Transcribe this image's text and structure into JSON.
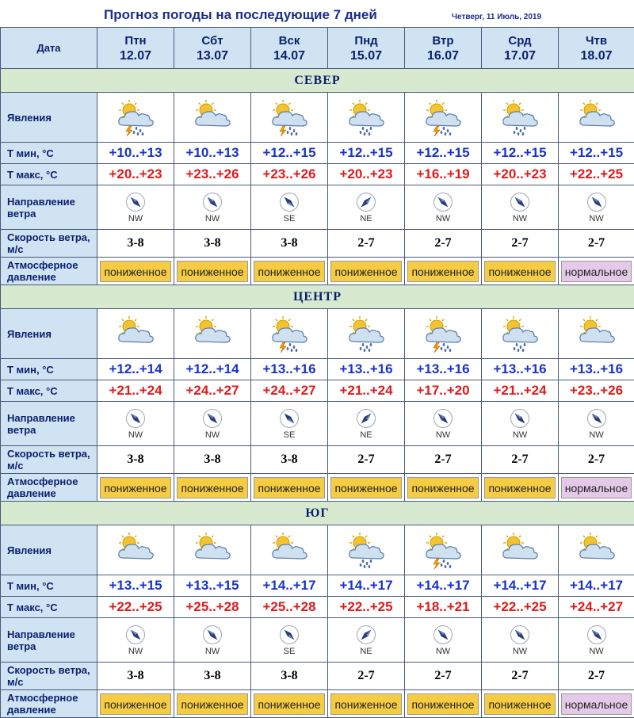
{
  "title": "Прогноз погоды на последующие 7 дней",
  "date": "Четверг, 11 Июль, 2019",
  "header": {
    "date_label": "Дата",
    "days": [
      {
        "name": "Птн",
        "date": "12.07"
      },
      {
        "name": "Сбт",
        "date": "13.07"
      },
      {
        "name": "Вск",
        "date": "14.07"
      },
      {
        "name": "Пнд",
        "date": "15.07"
      },
      {
        "name": "Втр",
        "date": "16.07"
      },
      {
        "name": "Срд",
        "date": "17.07"
      },
      {
        "name": "Чтв",
        "date": "18.07"
      }
    ]
  },
  "row_labels": {
    "phenomena": "Явления",
    "tmin": "Т мин, °С",
    "tmax": "Т макс, °С",
    "wind_dir": "Направление ветра",
    "wind_speed": "Скорость ветра, м/с",
    "pressure": "Атмосферное давление"
  },
  "icon_legend": {
    "pc": "partly-cloudy-icon",
    "ts": "thunderstorm-rain-icon",
    "rn": "cloud-rain-icon"
  },
  "colors": {
    "tmin": "#1833c8",
    "tmax": "#e01a1a",
    "pressure_low": "#f6cc45",
    "pressure_normal": "#e5c9e8",
    "header_bg": "#cfe3f2",
    "region_bg": "#d7e9cf"
  },
  "regions": [
    {
      "name": "СЕВЕР",
      "weather": [
        "ts",
        "pc",
        "ts",
        "rn",
        "ts",
        "rn",
        "pc"
      ],
      "tmin": [
        "+10..+13",
        "+10..+13",
        "+12..+15",
        "+12..+15",
        "+12..+15",
        "+12..+15",
        "+12..+15"
      ],
      "tmax": [
        "+20..+23",
        "+23..+26",
        "+23..+26",
        "+20..+23",
        "+16..+19",
        "+20..+23",
        "+22..+25"
      ],
      "wind_dir": [
        "NW",
        "NW",
        "SE",
        "NE",
        "NW",
        "NW",
        "NW"
      ],
      "wind_speed": [
        "3-8",
        "3-8",
        "3-8",
        "2-7",
        "2-7",
        "2-7",
        "2-7"
      ],
      "pressure": [
        "пониженное",
        "пониженное",
        "пониженное",
        "пониженное",
        "пониженное",
        "пониженное",
        "нормальное"
      ]
    },
    {
      "name": "ЦЕНТР",
      "weather": [
        "pc",
        "pc",
        "ts",
        "rn",
        "ts",
        "rn",
        "pc"
      ],
      "tmin": [
        "+12..+14",
        "+12..+14",
        "+13..+16",
        "+13..+16",
        "+13..+16",
        "+13..+16",
        "+13..+16"
      ],
      "tmax": [
        "+21..+24",
        "+24..+27",
        "+24..+27",
        "+21..+24",
        "+17..+20",
        "+21..+24",
        "+23..+26"
      ],
      "wind_dir": [
        "NW",
        "NW",
        "SE",
        "NE",
        "NW",
        "NW",
        "NW"
      ],
      "wind_speed": [
        "3-8",
        "3-8",
        "3-8",
        "2-7",
        "2-7",
        "2-7",
        "2-7"
      ],
      "pressure": [
        "пониженное",
        "пониженное",
        "пониженное",
        "пониженное",
        "пониженное",
        "пониженное",
        "нормальное"
      ]
    },
    {
      "name": "ЮГ",
      "weather": [
        "pc",
        "pc",
        "pc",
        "rn",
        "ts",
        "pc",
        "pc"
      ],
      "tmin": [
        "+13..+15",
        "+13..+15",
        "+14..+17",
        "+14..+17",
        "+14..+17",
        "+14..+17",
        "+14..+17"
      ],
      "tmax": [
        "+22..+25",
        "+25..+28",
        "+25..+28",
        "+22..+25",
        "+18..+21",
        "+22..+25",
        "+24..+27"
      ],
      "wind_dir": [
        "NW",
        "NW",
        "SE",
        "NE",
        "NW",
        "NW",
        "NW"
      ],
      "wind_speed": [
        "3-8",
        "3-8",
        "3-8",
        "2-7",
        "2-7",
        "2-7",
        "2-7"
      ],
      "pressure": [
        "пониженное",
        "пониженное",
        "пониженное",
        "пониженное",
        "пониженное",
        "пониженное",
        "нормальное"
      ]
    }
  ]
}
